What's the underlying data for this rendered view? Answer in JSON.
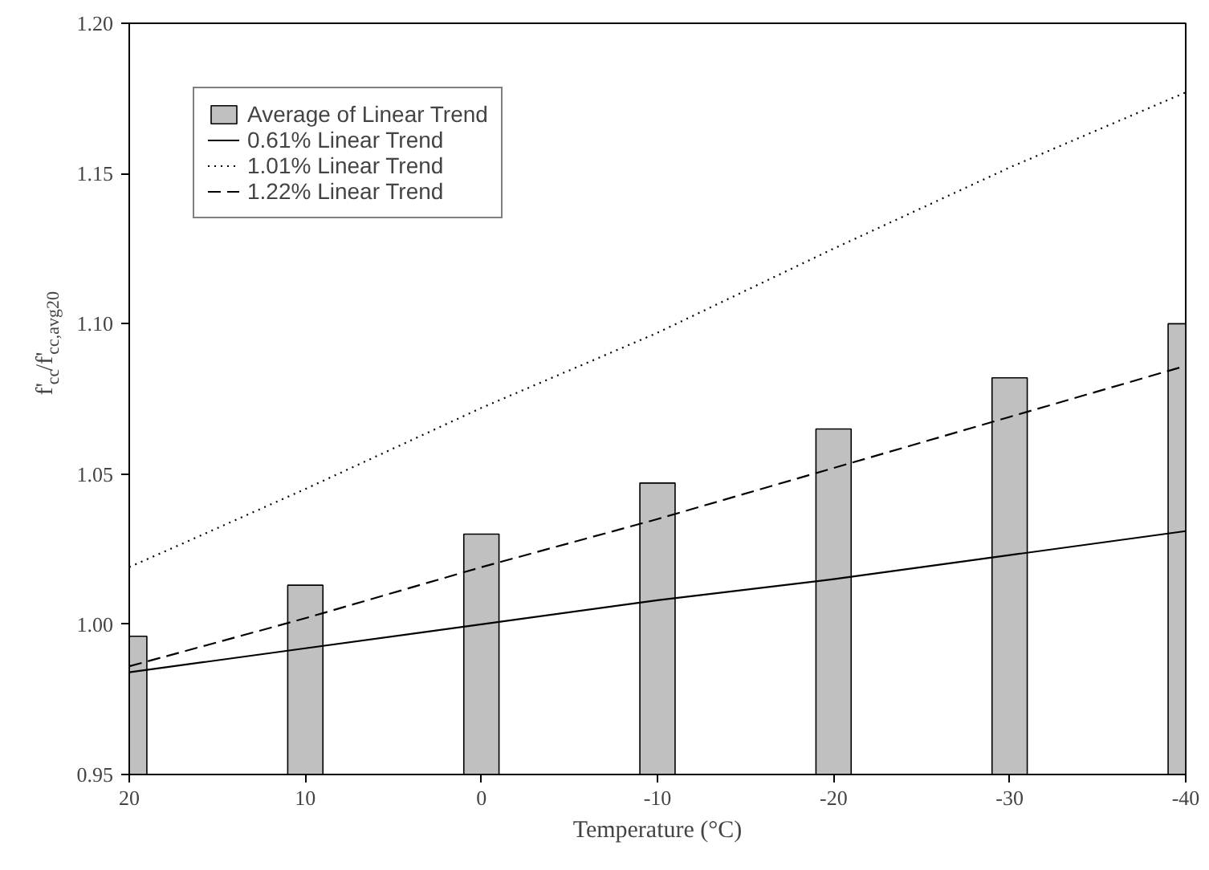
{
  "chart_data": {
    "type": "bar",
    "xlabel": "Temperature (°C)",
    "ylabel": "f'$_{cc}$/f'$_{cc,avg20}$",
    "x": [
      20,
      10,
      0,
      -10,
      -20,
      -30,
      -40
    ],
    "series": [
      {
        "name": "Average of Linear Trend",
        "color": "#c0c0c0",
        "values": [
          0.996,
          1.013,
          1.03,
          1.047,
          1.065,
          1.082,
          1.1
        ]
      },
      {
        "name": "0.61% Linear Trend",
        "type": "line",
        "color": "#000000",
        "line_style": "solid",
        "values": [
          0.984,
          0.992,
          1.0,
          1.008,
          1.015,
          1.023,
          1.031
        ]
      },
      {
        "name": "1.01% Linear Trend",
        "type": "line",
        "color": "#000000",
        "line_style": "dotted",
        "values": [
          1.019,
          1.045,
          1.072,
          1.097,
          1.125,
          1.152,
          1.177
        ]
      },
      {
        "name": "1.22% Linear Trend",
        "type": "line",
        "color": "#000000",
        "line_style": "dashed",
        "values": [
          0.986,
          1.002,
          1.019,
          1.035,
          1.052,
          1.069,
          1.086
        ]
      }
    ],
    "xlim": [
      20,
      -40
    ],
    "xticks": [
      20,
      10,
      0,
      -10,
      -20,
      -30,
      -40
    ],
    "ylim": [
      0.95,
      1.2
    ],
    "yticks": [
      {
        "value": 0.95,
        "label": "0.95"
      },
      {
        "value": 1.0,
        "label": "1.00"
      },
      {
        "value": 1.05,
        "label": "1.05"
      },
      {
        "value": 1.1,
        "label": "1.10"
      },
      {
        "value": 1.15,
        "label": "1.15"
      },
      {
        "value": 1.2,
        "label": "1.20"
      }
    ],
    "grid": false,
    "legend": "top left"
  }
}
